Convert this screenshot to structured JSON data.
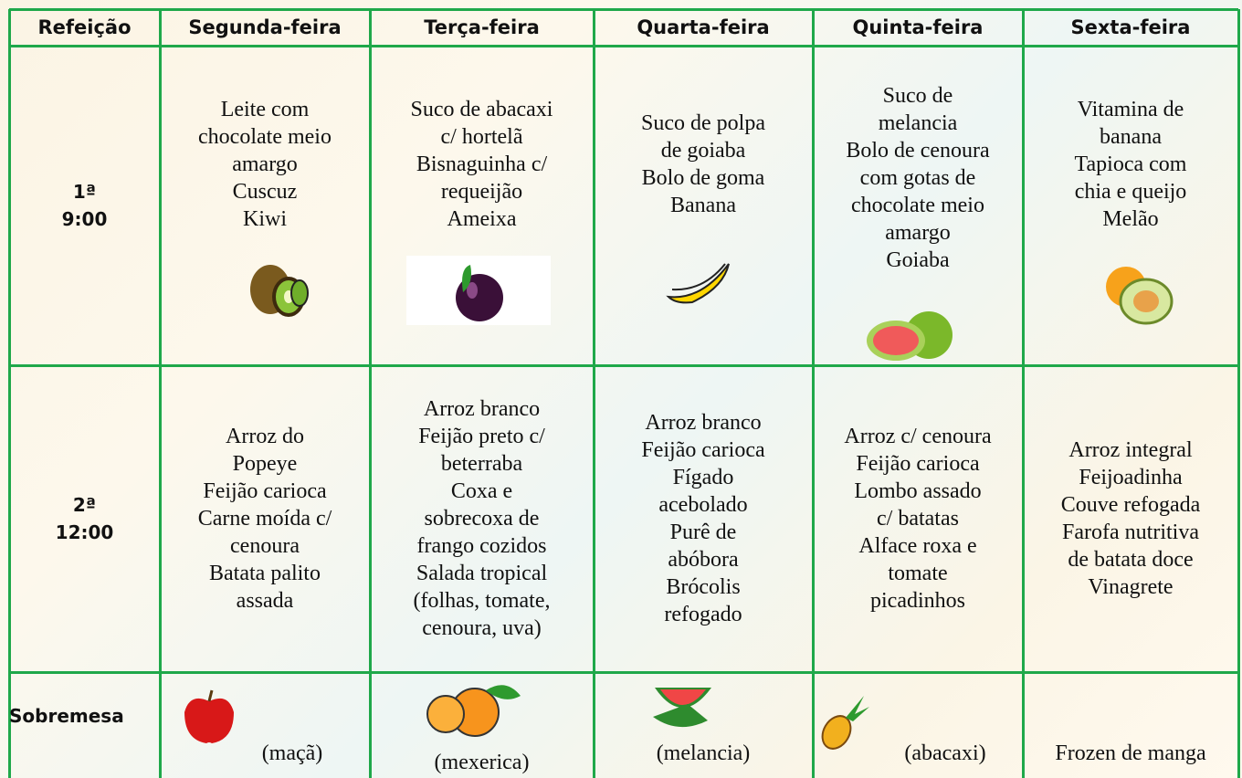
{
  "table": {
    "header": [
      "Refeição",
      "Segunda-feira",
      "Terça-feira",
      "Quarta-feira",
      "Quinta-feira",
      "Sexta-feira"
    ],
    "rows": [
      [
        [
          "1ª",
          "9:00"
        ],
        [
          "Leite com",
          "chocolate meio",
          "amargo",
          "Cuscuz",
          "Kiwi"
        ],
        [
          "Suco de abacaxi",
          "c/ hortelã",
          "Bisnaguinha c/",
          "requeijão",
          "Ameixa"
        ],
        [
          "Suco de polpa",
          "de goiaba",
          "Bolo de goma",
          "Banana"
        ],
        [
          "Suco de",
          "melancia",
          "Bolo de cenoura",
          "com gotas de",
          "chocolate meio",
          "amargo",
          "Goiaba"
        ],
        [
          "Vitamina de",
          "banana",
          "Tapioca com",
          "chia e queijo",
          "Melão"
        ]
      ],
      [
        [
          "2ª",
          "12:00"
        ],
        [
          "Arroz do",
          "Popeye",
          "Feijão carioca",
          "Carne moída c/",
          "cenoura",
          "Batata palito",
          "assada"
        ],
        [
          "Arroz branco",
          "Feijão preto c/",
          "beterraba",
          "Coxa e",
          "sobrecoxa de",
          "frango cozidos",
          "Salada tropical",
          "(folhas, tomate,",
          "cenoura, uva)"
        ],
        [
          "Arroz branco",
          "Feijão carioca",
          "Fígado",
          "acebolado",
          "Purê de",
          "abóbora",
          "Brócolis",
          "refogado"
        ],
        [
          "Arroz c/ cenoura",
          "Feijão carioca",
          "Lombo assado",
          "c/ batatas",
          "Alface roxa e",
          "tomate",
          "picadinhos"
        ],
        [
          "Arroz integral",
          "Feijoadinha",
          "Couve refogada",
          "Farofa nutritiva",
          "de batata doce",
          "Vinagrete"
        ]
      ],
      [
        [
          "Sobremesa"
        ],
        [
          "(maçã)"
        ],
        [
          "(mexerica)"
        ],
        [
          "(melancia)"
        ],
        [
          "(abacaxi)"
        ],
        [
          "Frozen de manga"
        ]
      ]
    ]
  }
}
